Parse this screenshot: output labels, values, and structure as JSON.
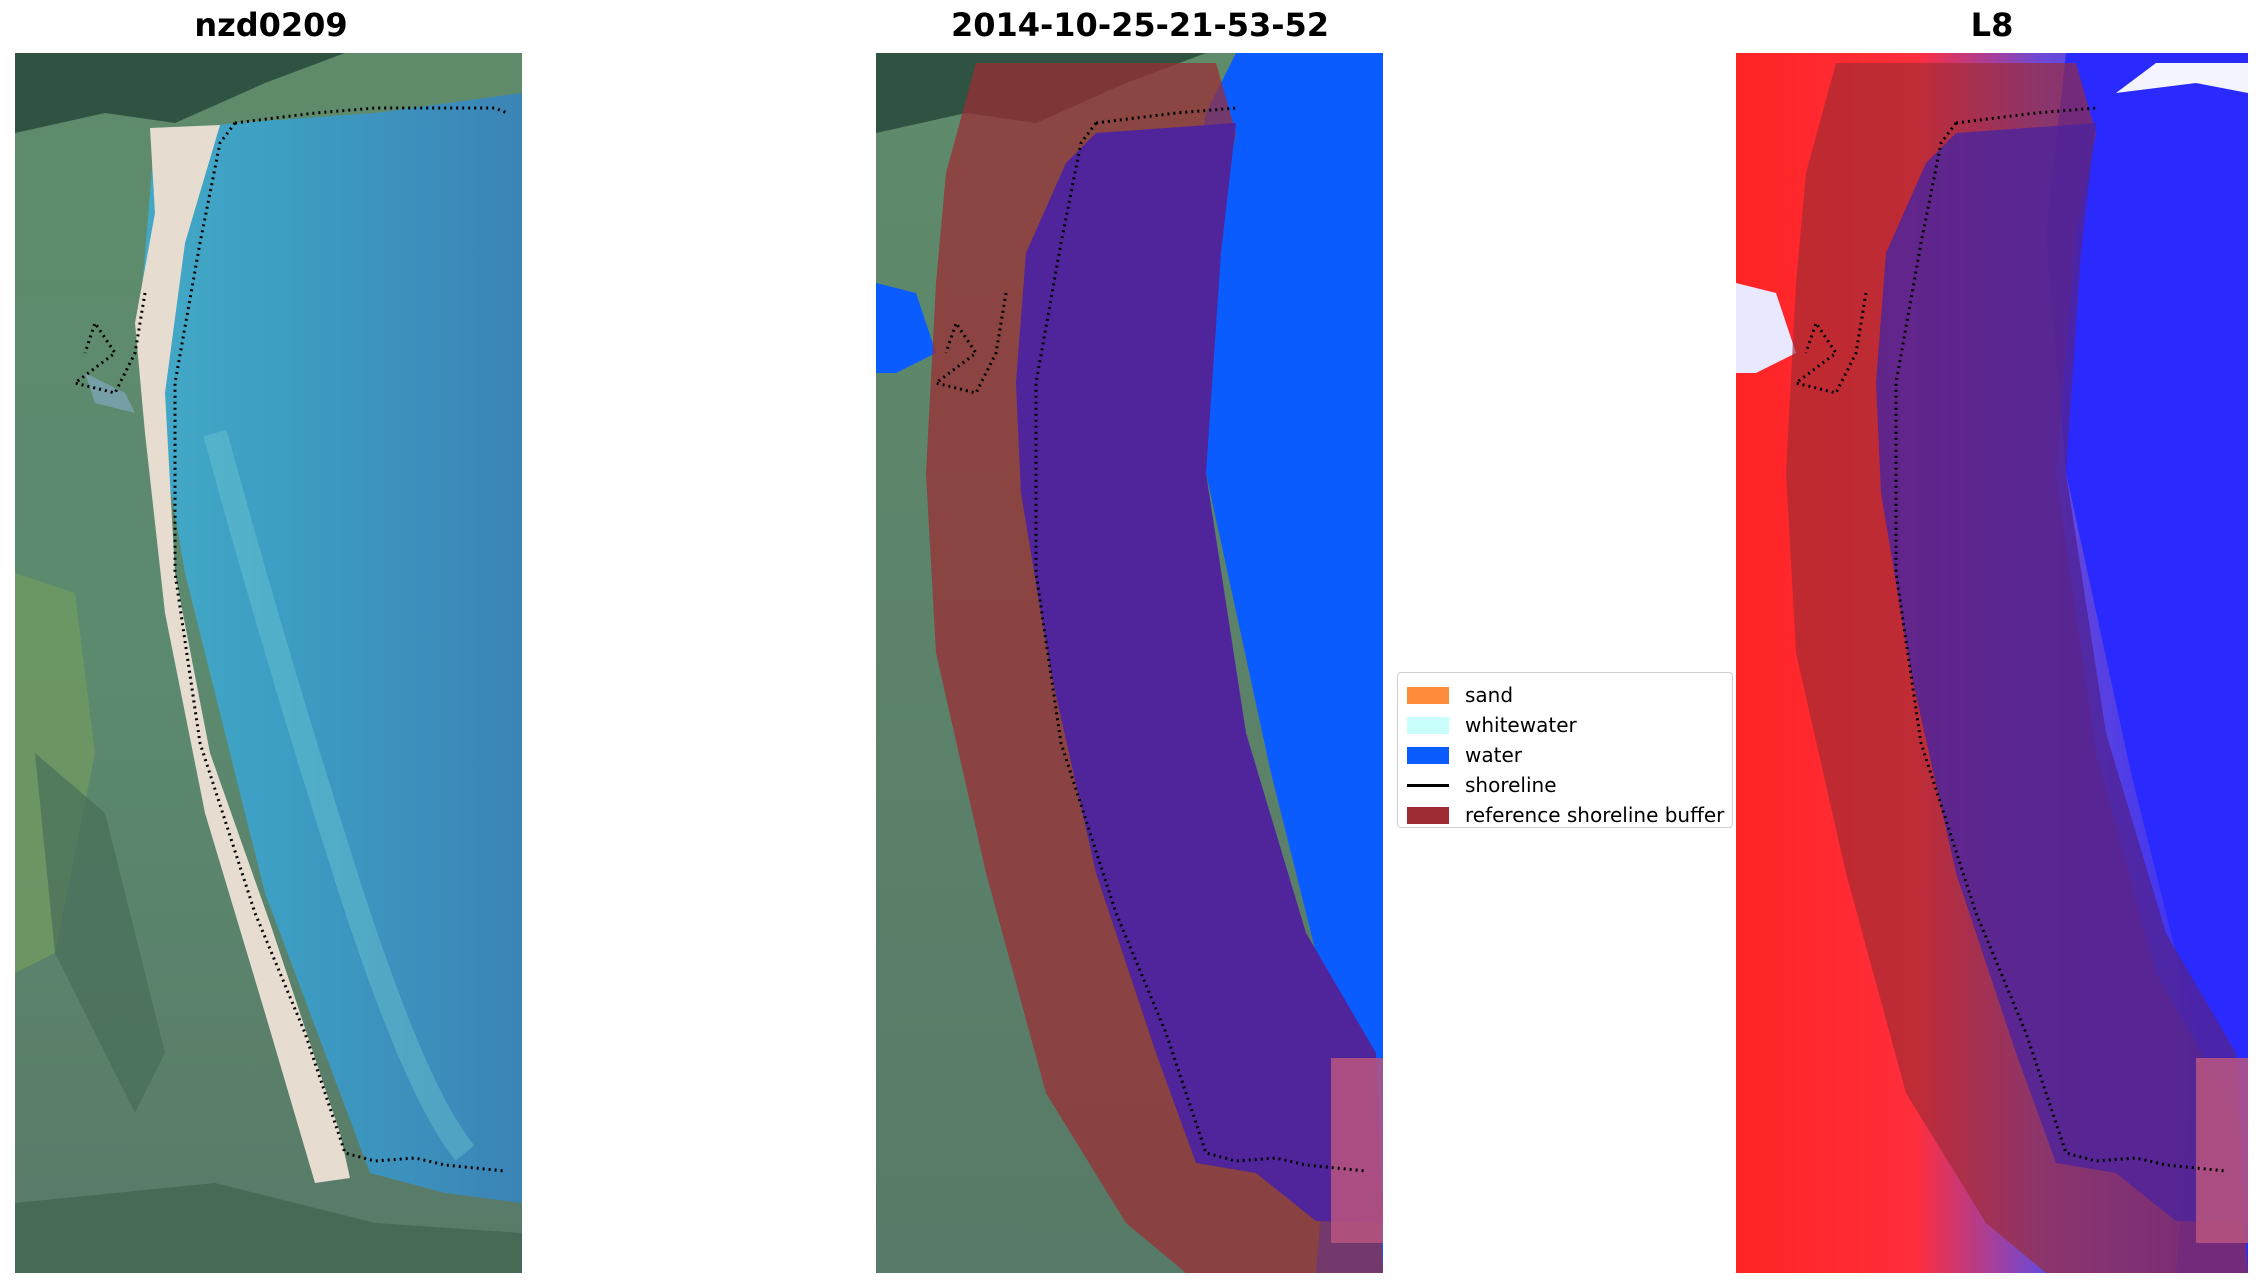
{
  "titles": {
    "site": "nzd0209",
    "date": "2014-10-25-21-53-52",
    "satellite": "L8"
  },
  "legend": {
    "items": [
      {
        "label": "sand",
        "color": "#ff8c3a",
        "kind": "patch"
      },
      {
        "label": "whitewater",
        "color": "#c8fffd",
        "kind": "patch"
      },
      {
        "label": "water",
        "color": "#0a5cff",
        "kind": "patch"
      },
      {
        "label": "shoreline",
        "color": "#000000",
        "kind": "line"
      },
      {
        "label": "reference shoreline buffer",
        "color": "#9c2b33",
        "kind": "patch"
      }
    ]
  },
  "colors": {
    "water_class": "#0a5cff",
    "buffer_overlay": "#9c2b33",
    "classified_water_in_buffer": "#50249a",
    "index_land": "#ff2424",
    "index_water": "#2a2aff"
  }
}
